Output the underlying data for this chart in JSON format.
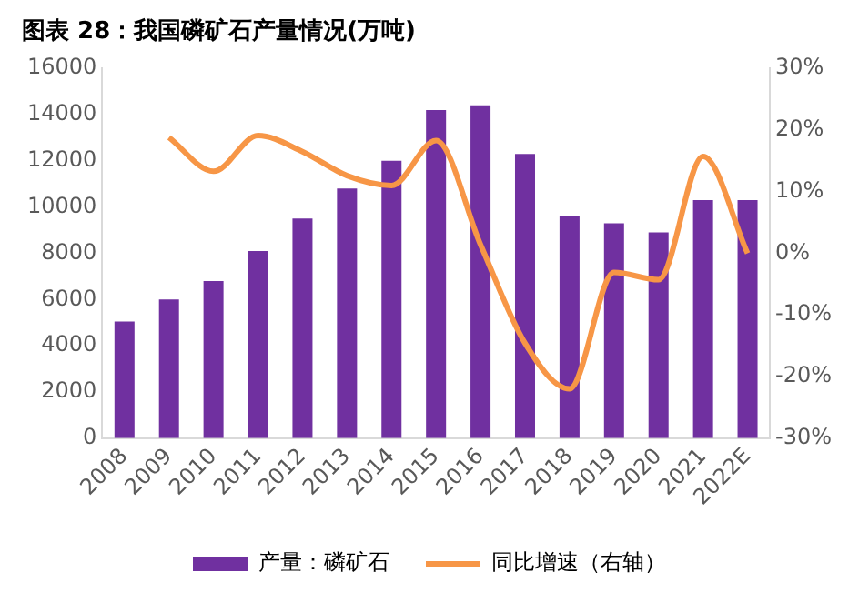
{
  "chart_data": {
    "type": "bar",
    "title": "图表 28：我国磷矿石产量情况(万吨)",
    "categories": [
      "2008",
      "2009",
      "2010",
      "2011",
      "2012",
      "2013",
      "2014",
      "2015",
      "2016",
      "2017",
      "2018",
      "2019",
      "2020",
      "2021",
      "2022E"
    ],
    "series": [
      {
        "name": "产量：磷矿石",
        "color": "#7030a0",
        "values": [
          5050,
          6000,
          6800,
          8100,
          9500,
          10800,
          12000,
          14200,
          14400,
          12300,
          9600,
          9300,
          8900,
          10300,
          10300
        ]
      },
      {
        "name": "同比增速（右轴）",
        "type": "line",
        "axis": "y2",
        "color": "#f79646",
        "values": [
          null,
          18.8,
          13.3,
          19.1,
          16.5,
          12.6,
          11,
          18.3,
          1.4,
          -14.6,
          -22,
          -3.1,
          -4.3,
          15.7,
          0
        ]
      }
    ],
    "ylim": [
      0,
      16000
    ],
    "yticks": [
      0,
      2000,
      4000,
      6000,
      8000,
      10000,
      12000,
      14000,
      16000
    ],
    "y2lim": [
      -30,
      30
    ],
    "y2ticks": [
      {
        "value": -30,
        "label": "-30%"
      },
      {
        "value": -20,
        "label": "-20%"
      },
      {
        "value": -10,
        "label": "-10%"
      },
      {
        "value": 0,
        "label": "0%"
      },
      {
        "value": 10,
        "label": "10%"
      },
      {
        "value": 20,
        "label": "20%"
      },
      {
        "value": 30,
        "label": "30%"
      }
    ],
    "legend": "bottom",
    "grid": false,
    "marker": "none",
    "line_style": "solid"
  }
}
